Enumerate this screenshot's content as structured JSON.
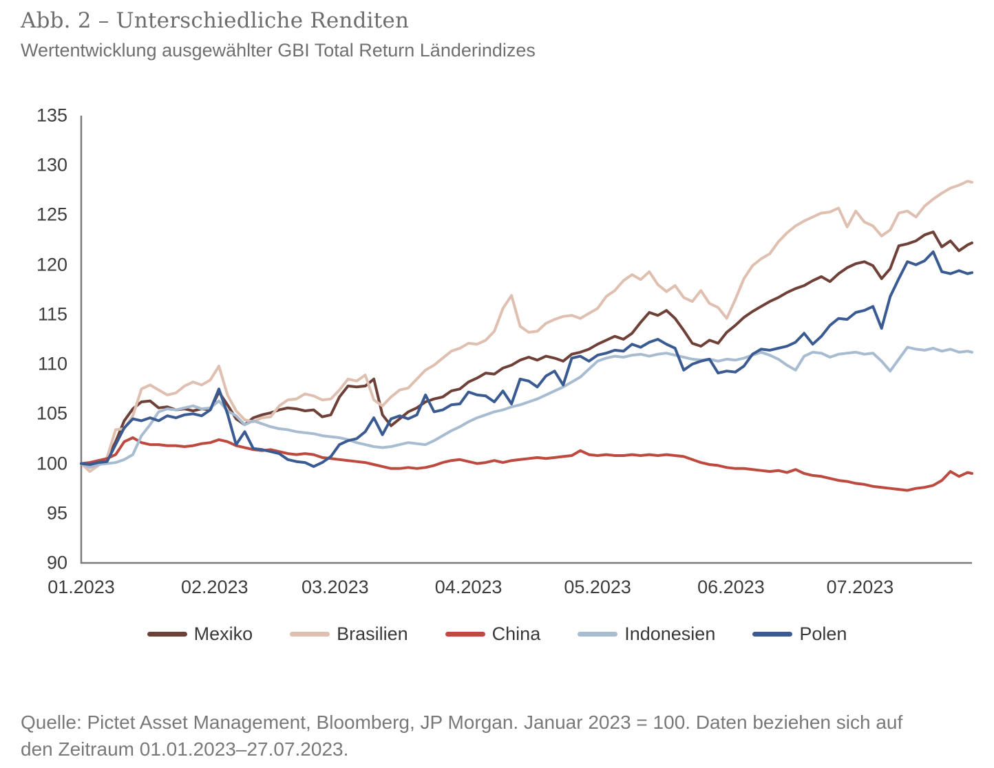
{
  "page": {
    "title": "Abb. 2 – Unterschiedliche Renditen",
    "subtitle": "Wertentwicklung ausgewählter GBI Total Return Länderindizes",
    "source_line1": "Quelle: Pictet Asset Management, Bloomberg, JP Morgan. Januar 2023 = 100. Daten beziehen sich auf",
    "source_line2": "den Zeitraum 01.01.2023–27.07.2023."
  },
  "chart_data": {
    "type": "line",
    "title": "Abb. 2 – Unterschiedliche Renditen",
    "subtitle": "Wertentwicklung ausgewählter GBI Total Return Länderindizes",
    "xlabel": "",
    "ylabel": "",
    "ylim": [
      90,
      135
    ],
    "y_ticks": [
      90,
      95,
      100,
      105,
      110,
      115,
      120,
      125,
      130,
      135
    ],
    "x_tick_labels": [
      "01.2023",
      "02.2023",
      "03.2023",
      "04.2023",
      "05.2023",
      "06.2023",
      "07.2023"
    ],
    "x_tick_days": [
      0,
      31,
      59,
      90,
      120,
      151,
      181
    ],
    "x_range_days": [
      0,
      207
    ],
    "sample_interval_days": 2,
    "grid": false,
    "legend_position": "bottom",
    "axis_color": "#7a7a7a",
    "baseline_note": "Januar 2023 = 100",
    "series": [
      {
        "name": "Mexiko",
        "color": "#6e4038",
        "values": [
          100,
          99.8,
          100.2,
          100.4,
          102.2,
          104.3,
          105.5,
          106.2,
          106.3,
          105.6,
          105.7,
          105.4,
          105.5,
          105.3,
          105.5,
          105.4,
          107.2,
          105.9,
          104.5,
          103.9,
          104.6,
          104.9,
          105.1,
          105.4,
          105.6,
          105.5,
          105.3,
          105.4,
          104.7,
          104.9,
          106.7,
          107.8,
          107.7,
          107.8,
          108.5,
          104.9,
          103.8,
          104.5,
          105.2,
          105.6,
          106.2,
          106.5,
          106.7,
          107.3,
          107.5,
          108.2,
          108.6,
          109.1,
          109,
          109.6,
          109.9,
          110.4,
          110.7,
          110.4,
          110.8,
          110.6,
          110.3,
          111,
          111.2,
          111.5,
          112,
          112.4,
          112.8,
          112.5,
          113.1,
          114.2,
          115.2,
          114.9,
          115.4,
          114.6,
          113.4,
          112.1,
          111.8,
          112.4,
          112.1,
          113.2,
          113.9,
          114.7,
          115.3,
          115.8,
          116.3,
          116.7,
          117.2,
          117.6,
          117.9,
          118.4,
          118.8,
          118.3,
          119.1,
          119.7,
          120.1,
          120.3,
          119.9,
          118.6,
          119.6,
          121.9,
          122.1,
          122.4,
          123,
          123.3,
          121.8,
          122.4,
          121.4,
          122,
          122.2
        ]
      },
      {
        "name": "Brasilien",
        "color": "#debfb0",
        "values": [
          100,
          99.2,
          99.8,
          100.6,
          103.4,
          103.5,
          104.8,
          107.5,
          107.9,
          107.4,
          106.9,
          107.1,
          107.8,
          108.2,
          107.9,
          108.4,
          109.8,
          106.9,
          105.3,
          104.4,
          104.2,
          104.6,
          104.7,
          105.8,
          106.4,
          106.5,
          107,
          106.8,
          106.4,
          106.5,
          107.4,
          108.5,
          108.3,
          108.9,
          106.4,
          105.8,
          106.7,
          107.4,
          107.6,
          108.5,
          109.4,
          109.9,
          110.6,
          111.3,
          111.6,
          112.1,
          112,
          112.4,
          113.3,
          115.6,
          116.9,
          113.8,
          113.2,
          113.3,
          114.1,
          114.5,
          114.8,
          114.9,
          114.6,
          115.1,
          115.6,
          116.8,
          117.4,
          118.4,
          119,
          118.5,
          119.3,
          118,
          117.3,
          117.9,
          116.7,
          116.3,
          117.4,
          116.1,
          115.7,
          114.6,
          116.5,
          118.6,
          119.9,
          120.6,
          121.1,
          122.3,
          123.2,
          123.9,
          124.4,
          124.8,
          125.2,
          125.3,
          125.7,
          123.8,
          125.4,
          124.3,
          123.9,
          122.9,
          123.5,
          125.2,
          125.4,
          124.8,
          125.9,
          126.6,
          127.2,
          127.7,
          128,
          128.4,
          128.3
        ]
      },
      {
        "name": "China",
        "color": "#bd4a3f",
        "values": [
          100,
          100.1,
          100.3,
          100.5,
          100.9,
          102.2,
          102.6,
          102.1,
          101.9,
          101.9,
          101.8,
          101.8,
          101.7,
          101.8,
          102,
          102.1,
          102.4,
          102.2,
          101.8,
          101.6,
          101.4,
          101.3,
          101.4,
          101.2,
          101,
          100.9,
          101,
          100.9,
          100.6,
          100.5,
          100.4,
          100.3,
          100.2,
          100.1,
          99.9,
          99.7,
          99.5,
          99.5,
          99.6,
          99.5,
          99.6,
          99.8,
          100.1,
          100.3,
          100.4,
          100.2,
          100,
          100.1,
          100.3,
          100.1,
          100.3,
          100.4,
          100.5,
          100.6,
          100.5,
          100.6,
          100.7,
          100.8,
          101.3,
          100.9,
          100.8,
          100.9,
          100.8,
          100.8,
          100.9,
          100.8,
          100.9,
          100.8,
          100.9,
          100.8,
          100.7,
          100.4,
          100.1,
          99.9,
          99.8,
          99.6,
          99.5,
          99.5,
          99.4,
          99.3,
          99.2,
          99.3,
          99.1,
          99.4,
          99,
          98.8,
          98.7,
          98.5,
          98.3,
          98.2,
          98,
          97.9,
          97.7,
          97.6,
          97.5,
          97.4,
          97.3,
          97.5,
          97.6,
          97.8,
          98.3,
          99.2,
          98.7,
          99.1,
          99
        ]
      },
      {
        "name": "Indonesien",
        "color": "#a7bbd1",
        "values": [
          100,
          99.6,
          99.9,
          100,
          100.1,
          100.4,
          100.9,
          102.8,
          103.9,
          105.2,
          105.5,
          105.4,
          105.6,
          105.8,
          105.5,
          105.6,
          106.3,
          105.3,
          104.8,
          103.9,
          104.3,
          104,
          103.7,
          103.5,
          103.4,
          103.2,
          103.1,
          103,
          102.8,
          102.7,
          102.6,
          102.4,
          102.1,
          101.9,
          101.7,
          101.6,
          101.7,
          101.9,
          102.1,
          102,
          101.9,
          102.3,
          102.8,
          103.3,
          103.7,
          104.2,
          104.6,
          104.9,
          105.2,
          105.4,
          105.7,
          105.9,
          106.2,
          106.5,
          106.9,
          107.3,
          107.7,
          108.2,
          108.7,
          109.5,
          110.3,
          110.6,
          110.8,
          110.7,
          110.9,
          111,
          110.8,
          111,
          111.1,
          110.9,
          110.7,
          110.5,
          110.4,
          110.5,
          110.3,
          110.5,
          110.4,
          110.6,
          110.9,
          111.2,
          110.9,
          110.5,
          109.9,
          109.4,
          110.8,
          111.2,
          111.1,
          110.7,
          111,
          111.1,
          111.2,
          111,
          111.1,
          110.3,
          109.3,
          110.5,
          111.7,
          111.5,
          111.4,
          111.6,
          111.3,
          111.5,
          111.2,
          111.3,
          111.2
        ]
      },
      {
        "name": "Polen",
        "color": "#3a5a92",
        "values": [
          100,
          99.9,
          100.1,
          100.2,
          101.9,
          103.6,
          104.5,
          104.3,
          104.6,
          104.3,
          104.8,
          104.6,
          104.9,
          105,
          104.8,
          105.4,
          107.5,
          105,
          101.9,
          103.2,
          101.5,
          101.4,
          101.2,
          101,
          100.4,
          100.2,
          100.1,
          99.7,
          100.1,
          100.7,
          101.9,
          102.3,
          102.5,
          103.2,
          104.6,
          102.9,
          104.5,
          104.8,
          104.5,
          104.9,
          106.9,
          105.2,
          105.4,
          105.9,
          106,
          107.2,
          106.9,
          106.8,
          106.2,
          107.3,
          106,
          108.5,
          108.3,
          107.7,
          108.8,
          109.3,
          107.9,
          110.6,
          110.8,
          110.3,
          110.9,
          111.1,
          111.4,
          111.3,
          112,
          111.7,
          112.2,
          112.5,
          112,
          111.6,
          109.4,
          110,
          110.3,
          110.5,
          109.1,
          109.3,
          109.2,
          109.8,
          111,
          111.5,
          111.4,
          111.6,
          111.8,
          112.2,
          113.1,
          112,
          112.8,
          113.9,
          114.6,
          114.5,
          115.2,
          115.4,
          115.8,
          113.6,
          116.8,
          118.6,
          120.3,
          120,
          120.4,
          121.3,
          119.3,
          119.1,
          119.4,
          119.1,
          119.2
        ]
      }
    ]
  }
}
